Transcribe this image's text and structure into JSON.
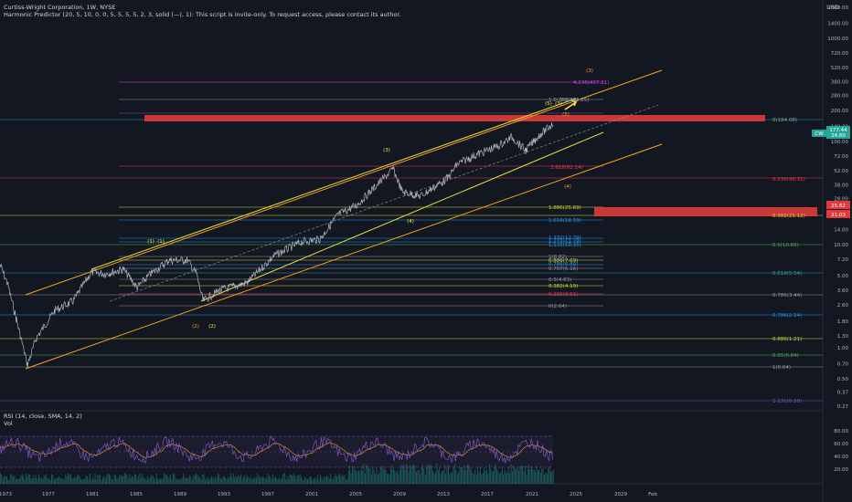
{
  "header": {
    "symbol_line": "Curtiss-Wright Corporation, 1W, NYSE",
    "indicator_line": "Harmonic Predictor (20, 5, 10, 0, 0, 5, 5, 5, 5, 2, 3, solid (—), 1): This script is invite-only. To request access, please contact its author.",
    "currency": "USD"
  },
  "rsi_legend": "RSI (14, close, SMA, 14, 2)",
  "vol_legend": "Vol",
  "price_axis_ticks": [
    "2000.00",
    "1400.00",
    "1000.00",
    "720.00",
    "520.00",
    "380.00",
    "280.00",
    "200.00",
    "140.00",
    "100.00",
    "72.00",
    "52.00",
    "38.00",
    "28.00",
    "20.00",
    "14.00",
    "10.00",
    "7.20",
    "5.00",
    "3.60",
    "2.60",
    "1.80",
    "1.30",
    "1.00",
    "0.70",
    "0.50",
    "0.37",
    "0.27"
  ],
  "rsi_axis_ticks": [
    "80.00",
    "60.00",
    "40.00",
    "20.00"
  ],
  "time_axis_ticks": [
    "1973",
    "1977",
    "1981",
    "1985",
    "1989",
    "1993",
    "1997",
    "2001",
    "2005",
    "2009",
    "2013",
    "2017",
    "2021",
    "2025",
    "2029",
    "Feb"
  ],
  "price_tags": {
    "symbol": "CW",
    "last": "177.44",
    "change": "24.60",
    "box_top": "25.62",
    "box_bottom": "21.03"
  },
  "fib_labels": [
    {
      "text": "4.236(437.31)",
      "color": "#e040fb"
    },
    {
      "text": "1.0(283.84)",
      "color": "#9598a1"
    },
    {
      "text": "3.0(263.25)",
      "color": "#9598a1"
    },
    {
      "text": "0(184.08)",
      "color": "#9598a1"
    },
    {
      "text": "2.618(82.14)",
      "color": "#f23645"
    },
    {
      "text": "0.236(48.31)",
      "color": "#f23645"
    },
    {
      "text": "1.886(25.69)",
      "color": "#cddc39"
    },
    {
      "text": "0.382(21.12)",
      "color": "#cddc39"
    },
    {
      "text": "1.618(18.59)",
      "color": "#2196f3"
    },
    {
      "text": "1.332(12.79)",
      "color": "#2196f3"
    },
    {
      "text": "1.272(11.79)",
      "color": "#2196f3"
    },
    {
      "text": "1.131(10.35)",
      "color": "#2196f3"
    },
    {
      "text": "0.5(10.82)",
      "color": "#4caf50"
    },
    {
      "text": "1(8.82)",
      "color": "#9598a1"
    },
    {
      "text": "0.886(7.69)",
      "color": "#cddc39"
    },
    {
      "text": "0.786(6.89)",
      "color": "#2196f3"
    },
    {
      "text": "0.707(6.16)",
      "color": "#9598a1"
    },
    {
      "text": "0.618(5.54)",
      "color": "#26a69a"
    },
    {
      "text": "0.5(4.83)",
      "color": "#9598a1"
    },
    {
      "text": "0.382(4.19)",
      "color": "#cddc39"
    },
    {
      "text": "0.786(3.44)",
      "color": "#9598a1"
    },
    {
      "text": "0.236(3.51)",
      "color": "#f23645"
    },
    {
      "text": "0(2.64)",
      "color": "#9598a1"
    },
    {
      "text": "0.786(2.14)",
      "color": "#2196f3"
    },
    {
      "text": "0.886(1.21)",
      "color": "#cddc39"
    },
    {
      "text": "0.95(0.84)",
      "color": "#4caf50"
    },
    {
      "text": "1(0.64)",
      "color": "#9598a1"
    },
    {
      "text": "1.131(0.30)",
      "color": "#7e57c2"
    }
  ],
  "wave_labels": [
    "(1)",
    "(1)",
    "(2)",
    "(2)",
    "(3)",
    "(3)",
    "(3)",
    "(4)",
    "(4)",
    "(5)",
    "(5)"
  ],
  "colors": {
    "background": "#131722",
    "channel_orange": "#f7a21b",
    "channel_yellow": "#e8e23a",
    "price_line": "#b2b5be",
    "resistance_zone": "#e03a3a",
    "rsi_line": "#7e57c2",
    "rsi_signal": "#f7a21b",
    "volume": "#26a69a"
  }
}
